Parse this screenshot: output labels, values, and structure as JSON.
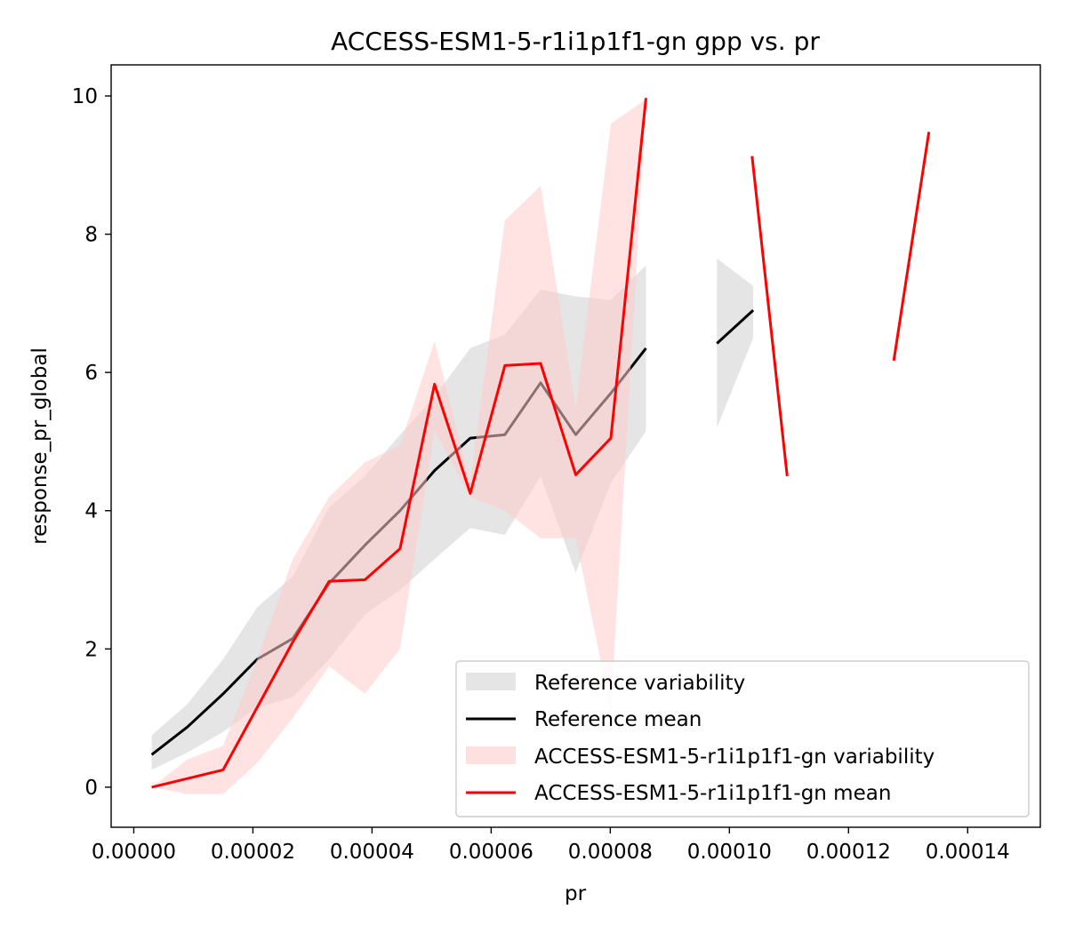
{
  "chart_data": {
    "type": "line",
    "title": "ACCESS-ESM1-5-r1i1p1f1-gn gpp vs. pr",
    "xlabel": "pr",
    "ylabel": "response_pr_global",
    "xlim": [
      -3.8e-06,
      0.0001522
    ],
    "ylim": [
      -0.58,
      10.45
    ],
    "xticks": [
      0.0,
      2e-05,
      4e-05,
      6e-05,
      8e-05,
      0.0001,
      0.00012,
      0.00014
    ],
    "xtick_labels": [
      "0.00000",
      "0.00002",
      "0.00004",
      "0.00006",
      "0.00008",
      "0.00010",
      "0.00012",
      "0.00014"
    ],
    "yticks": [
      0,
      2,
      4,
      6,
      8,
      10
    ],
    "ytick_labels": [
      "0",
      "2",
      "4",
      "6",
      "8",
      "10"
    ],
    "grid": false,
    "legend_position": "lower-right",
    "series": [
      {
        "name": "Reference variability",
        "kind": "band",
        "color": "#cccccc",
        "segments": [
          {
            "x": [
              3e-06,
              9e-06,
              1.5e-05,
              2.07e-05,
              2.67e-05,
              3.28e-05,
              3.88e-05,
              4.47e-05,
              5.05e-05,
              5.65e-05,
              6.23e-05,
              6.83e-05,
              7.42e-05,
              8.01e-05,
              8.6e-05
            ],
            "lower": [
              0.25,
              0.5,
              0.8,
              1.15,
              1.3,
              1.85,
              2.5,
              2.85,
              3.3,
              3.75,
              3.65,
              4.5,
              3.1,
              4.4,
              5.15
            ],
            "upper": [
              0.75,
              1.2,
              1.85,
              2.6,
              3.05,
              4.05,
              4.5,
              5.1,
              5.65,
              6.35,
              6.55,
              7.2,
              7.1,
              7.05,
              7.55
            ]
          },
          {
            "x": [
              9.79e-05,
              0.000104
            ],
            "lower": [
              5.2,
              6.5
            ],
            "upper": [
              7.65,
              7.25
            ]
          }
        ]
      },
      {
        "name": "Reference mean",
        "kind": "line",
        "color": "#000000",
        "segments": [
          {
            "x": [
              3e-06,
              9e-06,
              1.5e-05,
              2.07e-05,
              2.67e-05,
              3.28e-05,
              3.88e-05,
              4.47e-05,
              5.05e-05,
              5.65e-05,
              6.23e-05,
              6.83e-05,
              7.42e-05,
              8.01e-05,
              8.6e-05
            ],
            "y": [
              0.47,
              0.87,
              1.35,
              1.85,
              2.15,
              2.95,
              3.5,
              4.0,
              4.58,
              5.05,
              5.1,
              5.85,
              5.1,
              5.7,
              6.35
            ]
          },
          {
            "x": [
              9.79e-05,
              0.000104
            ],
            "y": [
              6.42,
              6.9
            ]
          }
        ]
      },
      {
        "name": "ACCESS-ESM1-5-r1i1p1f1-gn variability",
        "kind": "band",
        "color": "#ffcccc",
        "segments": [
          {
            "x": [
              3e-06,
              9e-06,
              1.5e-05,
              2.07e-05,
              2.67e-05,
              3.28e-05,
              3.88e-05,
              4.47e-05,
              5.05e-05,
              5.65e-05,
              6.23e-05,
              6.83e-05,
              7.42e-05,
              8.01e-05,
              8.6e-05
            ],
            "lower": [
              0.0,
              -0.1,
              -0.1,
              0.35,
              1.0,
              1.75,
              1.35,
              2.0,
              5.15,
              4.2,
              4.0,
              3.6,
              3.6,
              1.1,
              9.9
            ],
            "upper": [
              0.0,
              0.4,
              0.6,
              1.85,
              3.3,
              4.2,
              4.7,
              4.95,
              6.45,
              4.4,
              8.2,
              8.7,
              5.5,
              9.6,
              9.95
            ]
          }
        ]
      },
      {
        "name": "ACCESS-ESM1-5-r1i1p1f1-gn mean",
        "kind": "line",
        "color": "#ff0000",
        "segments": [
          {
            "x": [
              3e-06,
              1.5e-05,
              2.07e-05,
              2.67e-05,
              3.28e-05,
              3.88e-05,
              4.47e-05,
              5.05e-05,
              5.65e-05,
              6.23e-05,
              6.83e-05,
              7.42e-05,
              8.01e-05,
              8.6e-05
            ],
            "y": [
              0.0,
              0.25,
              1.15,
              2.1,
              2.98,
              3.0,
              3.45,
              5.83,
              4.25,
              6.1,
              6.13,
              4.52,
              5.05,
              9.97
            ]
          },
          {
            "x": [
              0.0001038,
              0.0001097
            ],
            "y": [
              9.13,
              4.5
            ]
          },
          {
            "x": [
              0.0001276,
              0.0001335
            ],
            "y": [
              6.17,
              9.48
            ]
          }
        ]
      }
    ]
  }
}
